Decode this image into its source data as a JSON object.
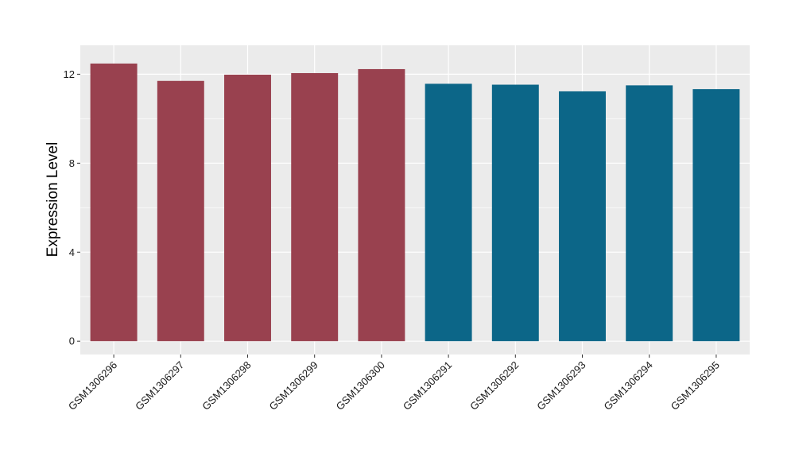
{
  "chart_data": {
    "type": "bar",
    "title": "",
    "xlabel": "",
    "ylabel": "Expression Level",
    "ylim": [
      -0.6,
      13.3
    ],
    "yticks": [
      0,
      4,
      8,
      12
    ],
    "ytick_labels": [
      "0",
      "4",
      "8",
      "12"
    ],
    "grid": true,
    "categories": [
      "GSM1306296",
      "GSM1306297",
      "GSM1306298",
      "GSM1306299",
      "GSM1306300",
      "GSM1306291",
      "GSM1306292",
      "GSM1306293",
      "GSM1306294",
      "GSM1306295"
    ],
    "values": [
      12.48,
      11.7,
      11.98,
      12.05,
      12.23,
      11.57,
      11.53,
      11.23,
      11.5,
      11.33
    ],
    "bar_colors": [
      "#99414F",
      "#99414F",
      "#99414F",
      "#99414F",
      "#99414F",
      "#0C6688",
      "#0C6688",
      "#0C6688",
      "#0C6688",
      "#0C6688"
    ],
    "panel_background": "#EBEBEB",
    "grid_color": "#FFFFFF"
  }
}
